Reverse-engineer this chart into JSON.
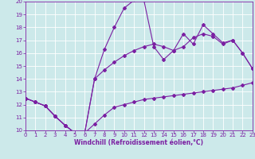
{
  "xlabel": "Windchill (Refroidissement éolien,°C)",
  "xlim": [
    0,
    23
  ],
  "ylim": [
    10,
    20
  ],
  "xticks": [
    0,
    1,
    2,
    3,
    4,
    5,
    6,
    7,
    8,
    9,
    10,
    11,
    12,
    13,
    14,
    15,
    16,
    17,
    18,
    19,
    20,
    21,
    22,
    23
  ],
  "yticks": [
    10,
    11,
    12,
    13,
    14,
    15,
    16,
    17,
    18,
    19,
    20
  ],
  "bg_color": "#cce9ea",
  "grid_color": "#ffffff",
  "line_color": "#7b1fa2",
  "line1_y": [
    12.5,
    12.2,
    11.9,
    11.1,
    10.4,
    9.8,
    9.8,
    10.5,
    11.2,
    11.8,
    12.0,
    12.2,
    12.4,
    12.5,
    12.6,
    12.7,
    12.8,
    12.9,
    13.0,
    13.1,
    13.2,
    13.3,
    13.5,
    13.7
  ],
  "line2_y": [
    12.5,
    12.2,
    11.9,
    11.1,
    10.4,
    9.8,
    9.8,
    14.0,
    16.3,
    18.0,
    19.5,
    20.1,
    20.1,
    16.5,
    15.5,
    16.2,
    17.5,
    16.7,
    18.2,
    17.5,
    16.8,
    17.0,
    16.0,
    14.8
  ],
  "line3_y": [
    12.5,
    12.2,
    11.9,
    11.1,
    10.4,
    9.8,
    9.8,
    14.0,
    14.7,
    15.3,
    15.8,
    16.2,
    16.5,
    16.7,
    16.5,
    16.2,
    16.5,
    17.2,
    17.5,
    17.3,
    16.7,
    17.0,
    16.0,
    14.8
  ],
  "marker": "D",
  "marker_size": 2.0,
  "line_width": 0.8,
  "tick_fontsize": 5.0,
  "xlabel_fontsize": 5.5
}
